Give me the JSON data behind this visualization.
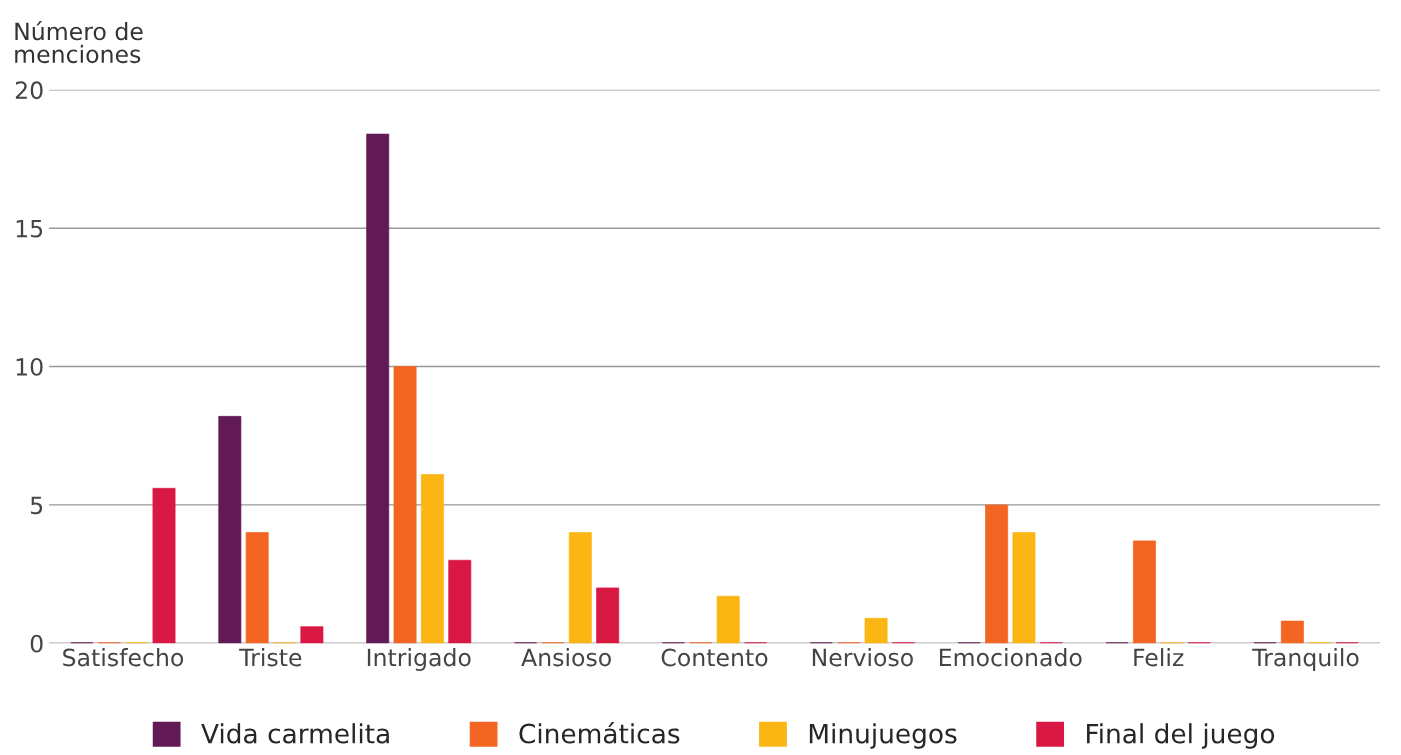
{
  "chart_data": {
    "type": "bar",
    "ylabel": "Número de\nmenciones",
    "categories": [
      "Satisfecho",
      "Triste",
      "Intrigado",
      "Ansioso",
      "Contento",
      "Nervioso",
      "Emocionado",
      "Feliz",
      "Tranquilo"
    ],
    "series": [
      {
        "name": "Vida carmelita",
        "color": "#621a56",
        "values": [
          0,
          8.2,
          18.4,
          0,
          0,
          0,
          0,
          0,
          0
        ]
      },
      {
        "name": "Cinemáticas",
        "color": "#f26522",
        "values": [
          0,
          4.0,
          10,
          0,
          0,
          0,
          5,
          3.7,
          0.8
        ]
      },
      {
        "name": "Minujuegos",
        "color": "#fbb614",
        "values": [
          0,
          0,
          6.1,
          4,
          1.7,
          0.9,
          4,
          0,
          0
        ]
      },
      {
        "name": "Final del juego",
        "color": "#da1844",
        "values": [
          5.6,
          0.6,
          3.0,
          2.0,
          0,
          0,
          0,
          0,
          0
        ]
      }
    ],
    "ylim": [
      0,
      20
    ],
    "yticks": [
      0,
      5,
      10,
      15,
      20
    ],
    "grid": "y",
    "legend": "bottom"
  }
}
